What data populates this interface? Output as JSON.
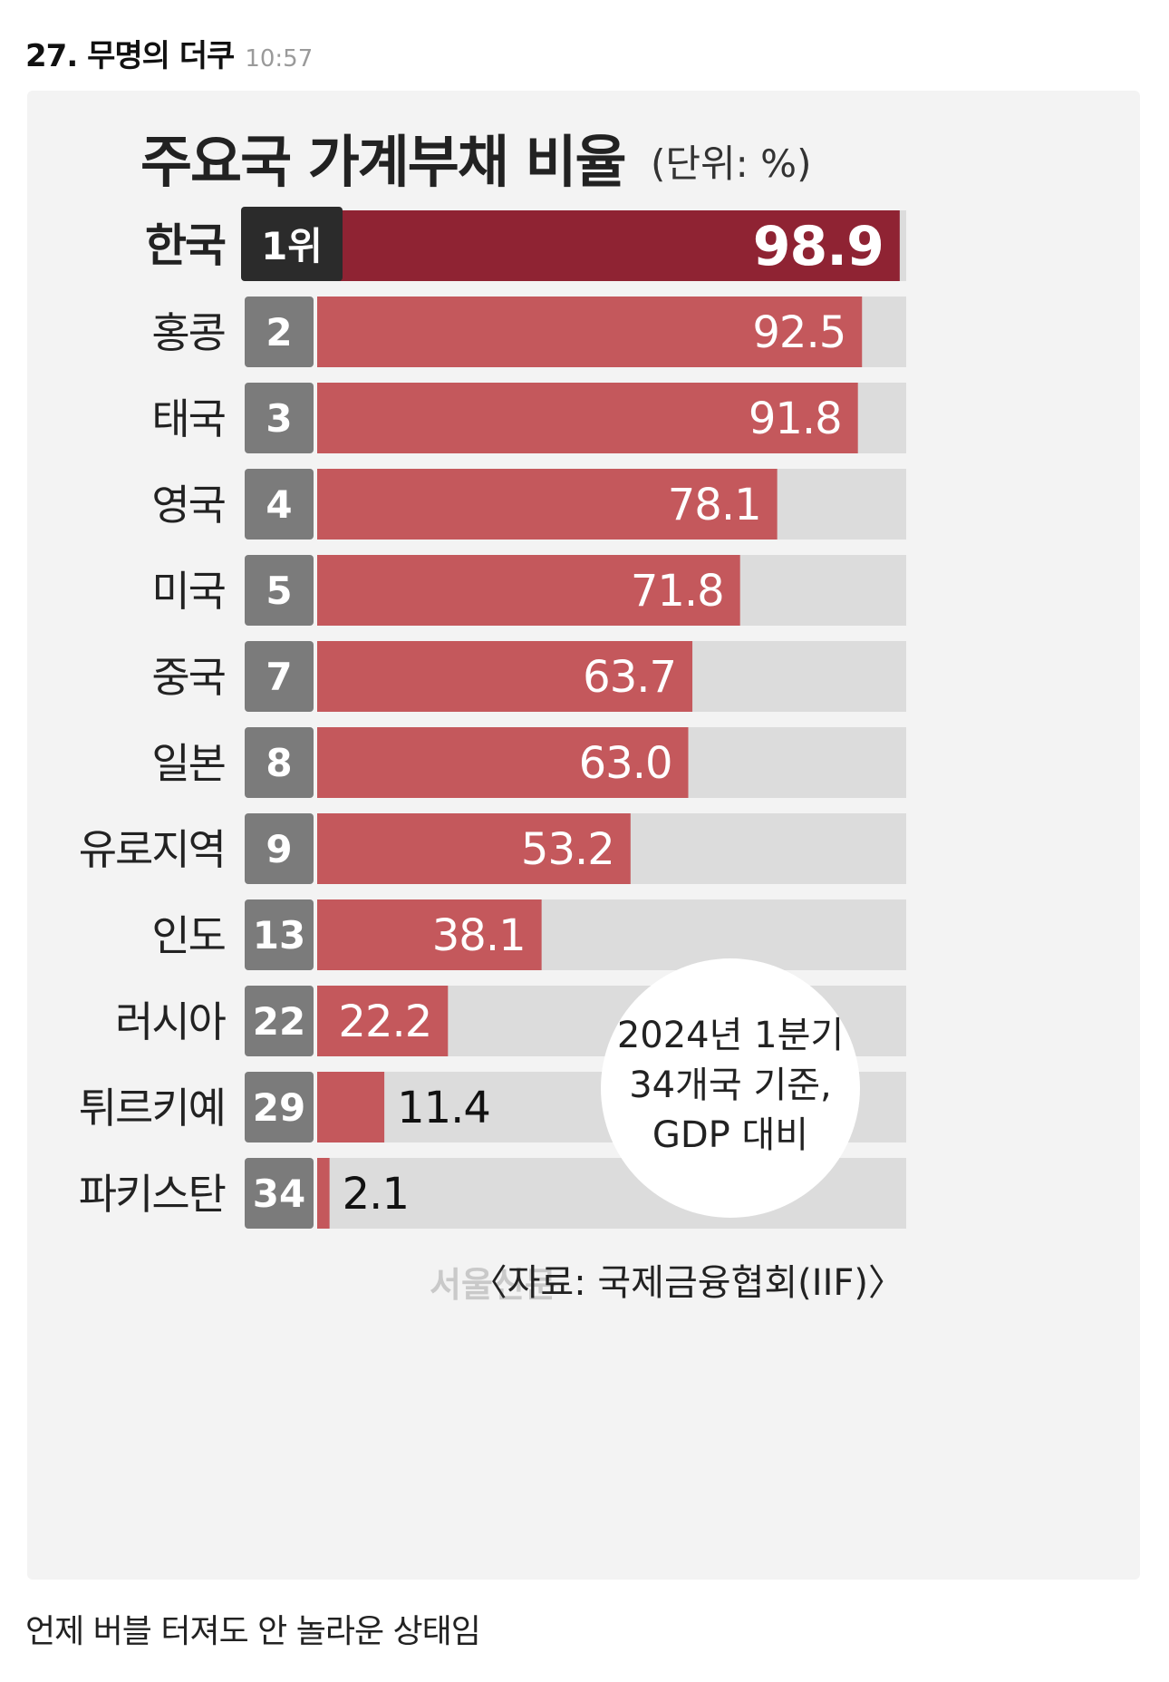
{
  "post": {
    "author": "27. 무명의 더쿠",
    "time": "10:57",
    "comment": "언제 버블 터져도 안 놀라운 상태임"
  },
  "chart_data": {
    "type": "bar",
    "orientation": "horizontal",
    "title": "주요국 가계부채 비율",
    "unit": "(단위: %)",
    "categories": [
      "한국",
      "홍콩",
      "태국",
      "영국",
      "미국",
      "중국",
      "일본",
      "유로지역",
      "인도",
      "러시아",
      "튀르키예",
      "파키스탄"
    ],
    "ranks": [
      "1위",
      "2",
      "3",
      "4",
      "5",
      "7",
      "8",
      "9",
      "13",
      "22",
      "29",
      "34"
    ],
    "values": [
      98.9,
      92.5,
      91.8,
      78.1,
      71.8,
      63.7,
      63.0,
      53.2,
      38.1,
      22.2,
      11.4,
      2.1
    ],
    "value_labels": [
      "98.9",
      "92.5",
      "91.8",
      "78.1",
      "71.8",
      "63.7",
      "63.0",
      "53.2",
      "38.1",
      "22.2",
      "11.4",
      "2.1"
    ],
    "xlim": [
      0,
      100
    ],
    "highlight_index": 0,
    "note": [
      "2024년 1분기",
      "34개국 기준,",
      "GDP 대비"
    ],
    "source": "〈자료: 국제금융협회(IIF)〉",
    "watermark": "서울신문",
    "colors": {
      "highlight_bar": "#8f2333",
      "bar": "#c4585c",
      "track": "#dcdcdc",
      "highlight_rank": "#2b2b2b",
      "rank": "#7b7b7b"
    }
  }
}
